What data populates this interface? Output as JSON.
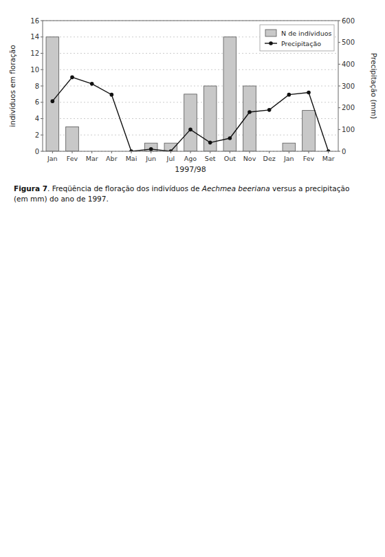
{
  "chart_data": {
    "type": "bar",
    "categories": [
      "Jan",
      "Fev",
      "Mar",
      "Abr",
      "Mai",
      "Jun",
      "Jul",
      "Ago",
      "Set",
      "Out",
      "Nov",
      "Dez",
      "Jan",
      "Fev",
      "Mar"
    ],
    "series": [
      {
        "name": "N de indíviduos",
        "type": "bar",
        "color": "#c8c8c8",
        "values": [
          14,
          3,
          0,
          0,
          0,
          1,
          1,
          7,
          8,
          14,
          8,
          0,
          1,
          5,
          0
        ]
      },
      {
        "name": "Precipitação",
        "type": "line",
        "axis": "y2",
        "color": "#111111",
        "marker": "circle",
        "line_style": "solid",
        "values": [
          230,
          340,
          310,
          260,
          0,
          10,
          0,
          100,
          40,
          60,
          180,
          190,
          260,
          270,
          0
        ]
      }
    ],
    "x_label": "1997/98",
    "y_label": "indivíduos em floração",
    "y2_label": "Precipitação (mm)",
    "ylim": [
      0,
      16
    ],
    "yticks": [
      0,
      2,
      4,
      6,
      8,
      10,
      12,
      14,
      16
    ],
    "y2lim": [
      0,
      600
    ],
    "y2ticks": [
      0,
      100,
      200,
      300,
      400,
      500,
      600
    ],
    "grid": true,
    "legend": "upper right",
    "annotations": [
      "Figura 7",
      ". Freqüência de floração dos indivíduos de ",
      "Aechmea beeriana",
      " versus a precipitação\n(em mm) do ano de 1997."
    ]
  }
}
